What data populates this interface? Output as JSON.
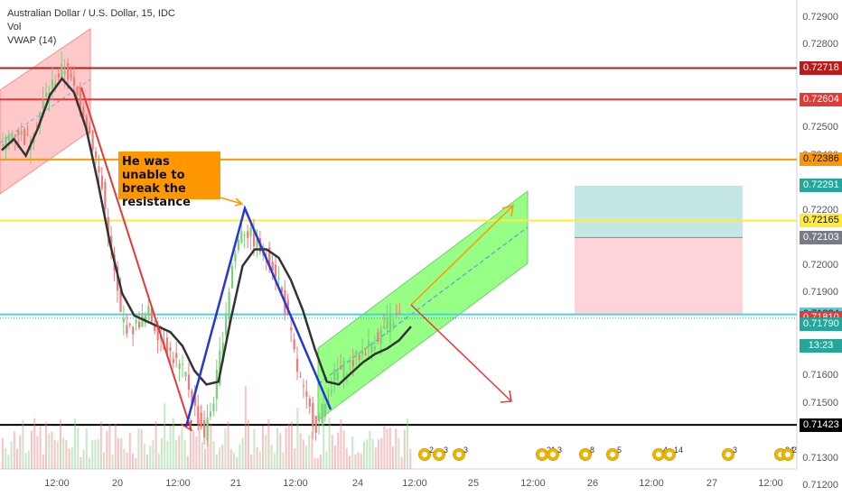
{
  "legend": {
    "title": "Australian Dollar / U.S. Dollar, 15, IDC",
    "vol": "Vol",
    "vwap": "VWAP (14)"
  },
  "annotation": {
    "text": "He was unable to break the resistance"
  },
  "countdown": "13:23",
  "colors": {
    "background": "#ffffff",
    "bull_candle": "#7ccf7c",
    "bear_candle": "#f07a7a",
    "vwap_line": "#333333",
    "yellow_level": "#ffeb3b",
    "cyan_level": "#4dd0e1",
    "orange_level": "#ff9800",
    "red_level": "#e53935",
    "darkred_level": "#b71c1c",
    "black_level": "#000000",
    "green_channel": "#76ff5e",
    "red_channel": "#ffb3b3",
    "target_zone": "#b2dfdb",
    "stop_zone": "#ffcdd2"
  },
  "chart_data": {
    "type": "candlestick",
    "symbol": "Australian Dollar / U.S. Dollar, 15, IDC",
    "y_axis": {
      "range": [
        0.71165,
        0.72965
      ],
      "ticks": [
        "0.72900",
        "0.72800",
        "0.72500",
        "0.72400",
        "0.72200",
        "0.72000",
        "0.71900",
        "0.71600",
        "0.71500",
        "0.71300",
        "0.71200"
      ]
    },
    "x_axis": {
      "ticks": [
        "12:00",
        "20",
        "12:00",
        "21",
        "12:00",
        "24",
        "12:00",
        "25",
        "12:00",
        "26",
        "12:00",
        "27",
        "12:00"
      ]
    },
    "price_levels": [
      {
        "value": "0.72718",
        "color": "#b71c1c",
        "text_color": "#ffffff"
      },
      {
        "value": "0.72604",
        "color": "#e53935",
        "text_color": "#ffffff"
      },
      {
        "value": "0.72386",
        "color": "#ff9800",
        "text_color": "#111111"
      },
      {
        "value": "0.72165",
        "color": "#ffeb3b",
        "text_color": "#111111"
      },
      {
        "value": "0.71824",
        "color": "#4dd0e1",
        "text_color": "#111111"
      },
      {
        "value": "0.71423",
        "color": "#000000",
        "text_color": "#ffffff"
      }
    ],
    "labels": [
      {
        "value": "0.72291",
        "color": "#26a69a",
        "text_color": "#ffffff"
      },
      {
        "value": "0.72103",
        "color": "#787b86",
        "text_color": "#ffffff"
      },
      {
        "value": "0.71810",
        "color": "#e53935",
        "text_color": "#ffffff"
      },
      {
        "value": "0.71790",
        "color": "#26a69a",
        "text_color": "#ffffff"
      }
    ],
    "current_price": 0.7181,
    "price_path": [
      [
        0.7241,
        0.7247,
        0.7249,
        0.7245,
        0.7253,
        0.7262,
        0.7268,
        0.7272,
        0.7264,
        0.7256,
        0.7244,
        0.7228,
        0.7205,
        0.7182,
        0.7176,
        0.718,
        0.7183,
        0.7176,
        0.717,
        0.7165,
        0.716,
        0.7148,
        0.7139,
        0.7152,
        0.7175,
        0.72,
        0.7214,
        0.7211,
        0.7206,
        0.7203,
        0.7195,
        0.718,
        0.7162,
        0.715,
        0.7142,
        0.715,
        0.716,
        0.7163,
        0.7165,
        0.7169,
        0.7172,
        0.7176,
        0.718,
        0.7182
      ]
    ],
    "vwap": [
      0.7242,
      0.7246,
      0.724,
      0.725,
      0.7262,
      0.7268,
      0.7263,
      0.725,
      0.723,
      0.7208,
      0.719,
      0.7182,
      0.718,
      0.7178,
      0.7176,
      0.7171,
      0.7162,
      0.7157,
      0.7158,
      0.718,
      0.72,
      0.7206,
      0.7206,
      0.7203,
      0.7195,
      0.7184,
      0.717,
      0.7158,
      0.7157,
      0.7161,
      0.7165,
      0.7168,
      0.717,
      0.7173,
      0.7178
    ],
    "event_counts": [
      "2",
      "3",
      "3",
      "21",
      "3",
      "8",
      "5",
      "4",
      "14",
      "3",
      "34",
      "2"
    ]
  }
}
